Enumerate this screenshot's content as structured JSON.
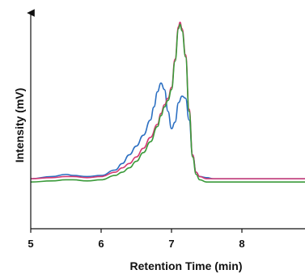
{
  "chart_data": {
    "type": "line",
    "xlabel": "Retention Time (min)",
    "ylabel": "Intensity (mV)",
    "xlim": [
      5.0,
      8.9
    ],
    "ylim": [
      0,
      100
    ],
    "x_ticks": [
      "5",
      "6",
      "7",
      "8"
    ],
    "grid": false,
    "y_axis_arrow": true,
    "series": [
      {
        "color": "#2b6fc2",
        "x": [
          5.0,
          5.3,
          5.5,
          5.6,
          5.8,
          6.0,
          6.2,
          6.3,
          6.4,
          6.5,
          6.6,
          6.7,
          6.75,
          6.8,
          6.85,
          6.9,
          6.95,
          7.0,
          7.05,
          7.1,
          7.15,
          7.2,
          7.25,
          7.3,
          7.35,
          7.4,
          7.5,
          7.6,
          7.7,
          7.8,
          8.0,
          8.2,
          8.4,
          8.6,
          8.9
        ],
        "y": [
          23,
          24,
          25,
          24.5,
          24,
          24.5,
          27,
          30,
          34,
          38,
          43,
          50,
          56,
          63,
          67,
          64,
          54,
          46,
          49,
          58,
          61,
          60,
          50,
          34,
          26,
          24,
          23.5,
          23,
          23,
          23,
          23,
          23,
          23,
          23,
          23
        ]
      },
      {
        "color": "#d43a74",
        "x": [
          5.0,
          5.3,
          5.5,
          5.6,
          5.8,
          6.0,
          6.2,
          6.3,
          6.4,
          6.5,
          6.6,
          6.7,
          6.8,
          6.85,
          6.9,
          6.95,
          7.0,
          7.05,
          7.1,
          7.12,
          7.15,
          7.2,
          7.25,
          7.3,
          7.35,
          7.4,
          7.5,
          7.6,
          7.7,
          7.8,
          8.0,
          8.2,
          8.4,
          8.6,
          8.9
        ],
        "y": [
          23,
          23.5,
          24,
          24,
          23.5,
          24,
          26,
          28,
          30,
          33,
          37,
          42,
          48,
          53,
          57,
          60,
          65,
          78,
          93,
          95,
          92,
          80,
          55,
          34,
          26,
          24,
          23,
          23,
          23,
          23,
          23,
          23,
          23,
          23,
          23
        ]
      },
      {
        "color": "#3a9a3a",
        "x": [
          5.0,
          5.3,
          5.5,
          5.6,
          5.8,
          6.0,
          6.2,
          6.3,
          6.4,
          6.5,
          6.6,
          6.7,
          6.8,
          6.85,
          6.9,
          6.95,
          7.0,
          7.05,
          7.1,
          7.12,
          7.15,
          7.2,
          7.25,
          7.3,
          7.35,
          7.4,
          7.5,
          7.6,
          7.7,
          7.8,
          8.0,
          8.2,
          8.4,
          8.6,
          8.9
        ],
        "y": [
          21.5,
          22,
          22.5,
          22.5,
          22,
          22.5,
          24.5,
          26,
          28,
          31,
          35,
          40,
          47,
          52,
          56,
          59,
          64,
          77,
          92,
          94,
          91,
          79,
          54,
          33,
          25,
          22.5,
          21.5,
          21.5,
          21.5,
          21.5,
          21.5,
          21.5,
          21.5,
          21.5,
          21.5
        ]
      }
    ]
  }
}
